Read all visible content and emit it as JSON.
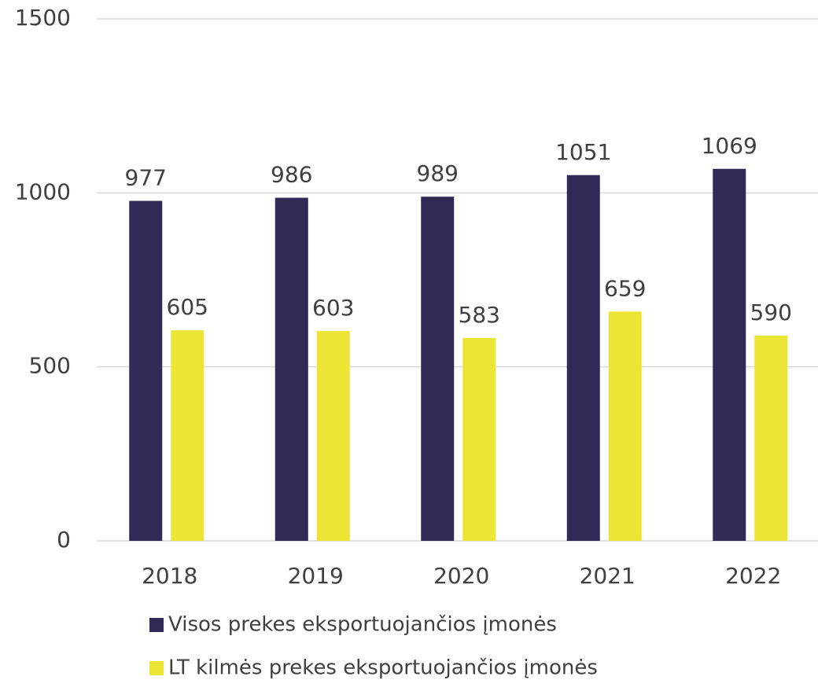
{
  "chart_data": {
    "type": "bar",
    "categories": [
      "2018",
      "2019",
      "2020",
      "2021",
      "2022"
    ],
    "series": [
      {
        "name": "Visos prekes eksportuojančios įmonės",
        "color": "#312a56",
        "values": [
          977,
          986,
          989,
          1051,
          1069
        ]
      },
      {
        "name": "LT kilmės prekes eksportuojančios įmonės",
        "color": "#ede534",
        "values": [
          605,
          603,
          583,
          659,
          590
        ]
      }
    ],
    "ylim": [
      0,
      1500
    ],
    "yticks": [
      0,
      500,
      1000,
      1500
    ],
    "grid": true,
    "legend": "bottom"
  }
}
